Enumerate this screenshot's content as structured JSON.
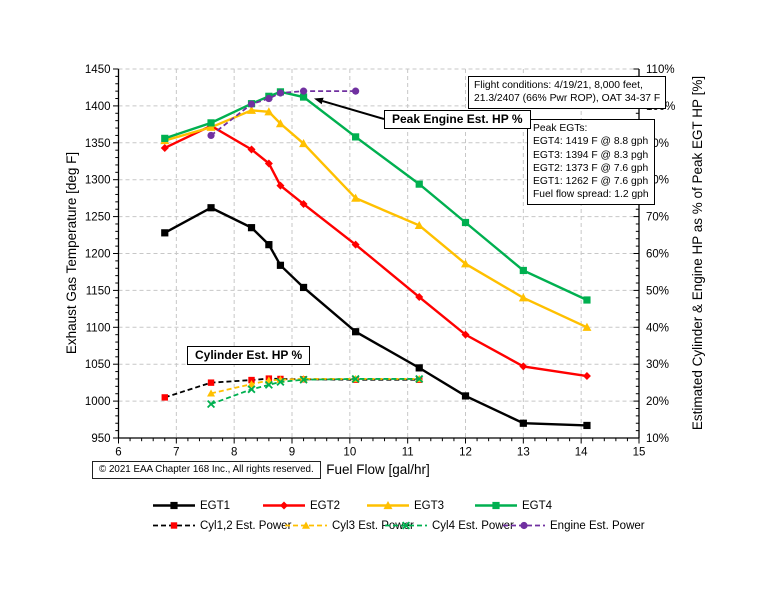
{
  "axes": {
    "x_title": "Fuel Flow [gal/hr]",
    "y_left_title": "Exhaust Gas Temperature  [deg F]",
    "y_right_title": "Estimated Cylinder & Engine HP as % of Peak EGT HP [%]"
  },
  "annotations": {
    "flight_conditions": {
      "line1": "Flight conditions: 4/19/21, 8,000 feet,",
      "line2": "21.3/2407 (66% Pwr ROP), OAT 34-37 F"
    },
    "peak_egts": {
      "title": "Peak EGTs:",
      "lines": [
        "EGT4: 1419 F @ 8.8 gph",
        "EGT3: 1394 F @ 8.3 pgh",
        "EGT2: 1373 F @ 7.6 gph",
        "EGT1: 1262 F @ 7.6 gph",
        "Fuel flow spread: 1.2 gph"
      ]
    },
    "peak_engine_label": "Peak Engine Est. HP %",
    "cylinder_label": "Cylinder Est. HP %",
    "copyright": "© 2021 EAA Chapter 168 Inc., All rights reserved."
  },
  "chart_data": {
    "type": "line",
    "title": "",
    "xlabel": "Fuel Flow [gal/hr]",
    "ylabel_left": "Exhaust Gas Temperature [deg F]",
    "ylabel_right": "Estimated Cylinder & Engine HP as % of Peak EGT HP [%]",
    "x_range": [
      6,
      15
    ],
    "x_ticks": [
      6,
      7,
      8,
      9,
      10,
      11,
      12,
      13,
      14,
      15
    ],
    "y_left_range": [
      950,
      1450
    ],
    "y_left_ticks": [
      950,
      1000,
      1050,
      1100,
      1150,
      1200,
      1250,
      1300,
      1350,
      1400,
      1450
    ],
    "y_right_range": [
      10,
      110
    ],
    "y_right_ticks": [
      "10%",
      "20%",
      "30%",
      "40%",
      "50%",
      "60%",
      "70%",
      "80%",
      "90%",
      "100%",
      "110%"
    ],
    "grid": "dashed",
    "legend_position": "bottom",
    "series": [
      {
        "name": "EGT1",
        "axis": "left",
        "color": "#000000",
        "dash": "solid",
        "marker": "square",
        "width": 2.4,
        "marker_size": 4.5,
        "x": [
          6.8,
          7.6,
          8.3,
          8.6,
          8.8,
          9.2,
          10.1,
          11.2,
          12.0,
          13.0,
          14.1
        ],
        "y": [
          1228,
          1262,
          1235,
          1212,
          1184,
          1154,
          1094,
          1045,
          1007,
          970,
          967
        ]
      },
      {
        "name": "EGT2",
        "axis": "left",
        "color": "#FF0000",
        "dash": "solid",
        "marker": "diamond",
        "width": 2.4,
        "marker_size": 4,
        "x": [
          6.8,
          7.6,
          8.3,
          8.6,
          8.8,
          9.2,
          10.1,
          11.2,
          12.0,
          13.0,
          14.1
        ],
        "y": [
          1343,
          1373,
          1341,
          1322,
          1292,
          1267,
          1212,
          1141,
          1090,
          1047,
          1034
        ]
      },
      {
        "name": "EGT3",
        "axis": "left",
        "color": "#FFC000",
        "dash": "solid",
        "marker": "triangle",
        "width": 2.4,
        "marker_size": 4.5,
        "x": [
          6.8,
          7.6,
          8.3,
          8.6,
          8.8,
          9.2,
          10.1,
          11.2,
          12.0,
          13.0,
          14.1
        ],
        "y": [
          1353,
          1371,
          1394,
          1392,
          1376,
          1349,
          1275,
          1238,
          1186,
          1140,
          1100
        ]
      },
      {
        "name": "EGT4",
        "axis": "left",
        "color": "#00B050",
        "dash": "solid",
        "marker": "square",
        "width": 2.4,
        "marker_size": 4.5,
        "x": [
          6.8,
          7.6,
          8.3,
          8.6,
          8.8,
          9.2,
          10.1,
          11.2,
          12.0,
          13.0,
          14.1
        ],
        "y": [
          1356,
          1377,
          1403,
          1413,
          1419,
          1412,
          1358,
          1294,
          1242,
          1177,
          1137
        ]
      },
      {
        "name": "Cyl1,2 Est. Power",
        "axis": "right",
        "color": "#000000",
        "marker_color": "#FF0000",
        "dash": "dashed",
        "marker": "square",
        "width": 1.8,
        "marker_size": 4,
        "x": [
          6.8,
          7.6,
          8.3,
          8.6,
          8.8,
          9.2,
          10.1,
          11.2
        ],
        "y": [
          21,
          25,
          25.7,
          26.1,
          26,
          25.9,
          25.8,
          25.8
        ]
      },
      {
        "name": "Cyl3 Est. Power",
        "axis": "right",
        "color": "#FFC000",
        "dash": "dashed",
        "marker": "triangle",
        "width": 1.8,
        "marker_size": 4,
        "x": [
          7.6,
          8.3,
          8.6,
          8.8,
          9.2,
          10.1,
          11.2
        ],
        "y": [
          22.1,
          24.6,
          25.6,
          25.8,
          26,
          26,
          26
        ]
      },
      {
        "name": "Cyl4 Est. Power",
        "axis": "right",
        "color": "#00B050",
        "dash": "dashed",
        "marker": "x",
        "width": 1.8,
        "marker_size": 4,
        "x": [
          7.6,
          8.3,
          8.6,
          8.8,
          9.2,
          10.1,
          11.2
        ],
        "y": [
          19.2,
          23.2,
          24.4,
          25.2,
          25.8,
          26,
          26
        ]
      },
      {
        "name": "Engine Est. Power",
        "axis": "right",
        "color": "#7030A0",
        "dash": "dashed",
        "marker": "circle",
        "width": 1.8,
        "marker_size": 4,
        "x": [
          7.6,
          8.3,
          8.6,
          8.8,
          9.2,
          10.1
        ],
        "y": [
          92,
          100.5,
          102,
          103.5,
          104,
          104
        ]
      }
    ]
  }
}
